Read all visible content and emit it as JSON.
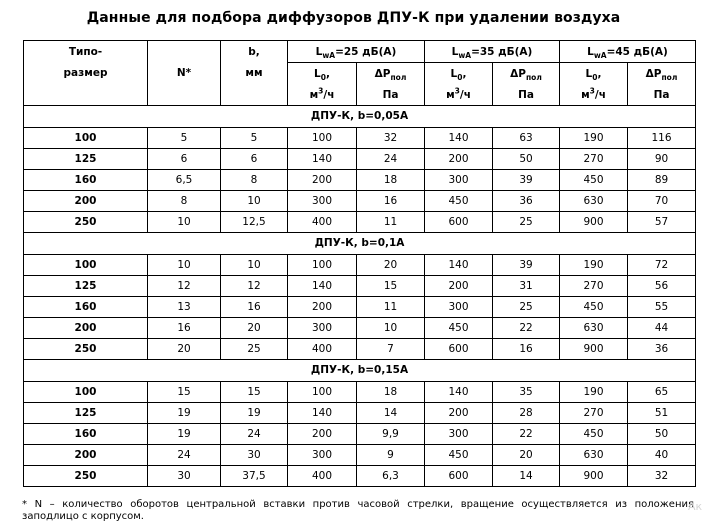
{
  "title": "Данные для подбора диффузоров ДПУ-К при удалении воздуха",
  "header": {
    "size_top": "Типо-",
    "size_bottom": "размер",
    "n": "N*",
    "b_top": "b,",
    "b_bottom": "мм",
    "groups": [
      {
        "L": "L",
        "sub": "wA",
        "rest": "=25 дБ(A)"
      },
      {
        "L": "L",
        "sub": "wA",
        "rest": "=35 дБ(A)"
      },
      {
        "L": "L",
        "sub": "wA",
        "rest": "=45 дБ(A)"
      }
    ],
    "l0": {
      "L": "L",
      "sub": "0",
      "rest": ","
    },
    "dp": {
      "pre": "ΔP",
      "sub": "пол"
    },
    "unit_flow": {
      "pre": "м",
      "sup": "3",
      "post": "/ч"
    },
    "unit_pa": "Па"
  },
  "sections": [
    {
      "title": "ДПУ-К, b=0,05A",
      "rows": [
        [
          "100",
          "5",
          "5",
          "100",
          "32",
          "140",
          "63",
          "190",
          "116"
        ],
        [
          "125",
          "6",
          "6",
          "140",
          "24",
          "200",
          "50",
          "270",
          "90"
        ],
        [
          "160",
          "6,5",
          "8",
          "200",
          "18",
          "300",
          "39",
          "450",
          "89"
        ],
        [
          "200",
          "8",
          "10",
          "300",
          "16",
          "450",
          "36",
          "630",
          "70"
        ],
        [
          "250",
          "10",
          "12,5",
          "400",
          "11",
          "600",
          "25",
          "900",
          "57"
        ]
      ]
    },
    {
      "title": "ДПУ-К, b=0,1A",
      "rows": [
        [
          "100",
          "10",
          "10",
          "100",
          "20",
          "140",
          "39",
          "190",
          "72"
        ],
        [
          "125",
          "12",
          "12",
          "140",
          "15",
          "200",
          "31",
          "270",
          "56"
        ],
        [
          "160",
          "13",
          "16",
          "200",
          "11",
          "300",
          "25",
          "450",
          "55"
        ],
        [
          "200",
          "16",
          "20",
          "300",
          "10",
          "450",
          "22",
          "630",
          "44"
        ],
        [
          "250",
          "20",
          "25",
          "400",
          "7",
          "600",
          "16",
          "900",
          "36"
        ]
      ]
    },
    {
      "title": "ДПУ-К, b=0,15A",
      "rows": [
        [
          "100",
          "15",
          "15",
          "100",
          "18",
          "140",
          "35",
          "190",
          "65"
        ],
        [
          "125",
          "19",
          "19",
          "140",
          "14",
          "200",
          "28",
          "270",
          "51"
        ],
        [
          "160",
          "19",
          "24",
          "200",
          "9,9",
          "300",
          "22",
          "450",
          "50"
        ],
        [
          "200",
          "24",
          "30",
          "300",
          "9",
          "450",
          "20",
          "630",
          "40"
        ],
        [
          "250",
          "30",
          "37,5",
          "400",
          "6,3",
          "600",
          "14",
          "900",
          "32"
        ]
      ]
    }
  ],
  "footnote": "* N – количество оборотов центральной вставки против часовой стрелки, вращение осуществляется из положения заподлицо с корпусом.",
  "watermark": "Ак"
}
